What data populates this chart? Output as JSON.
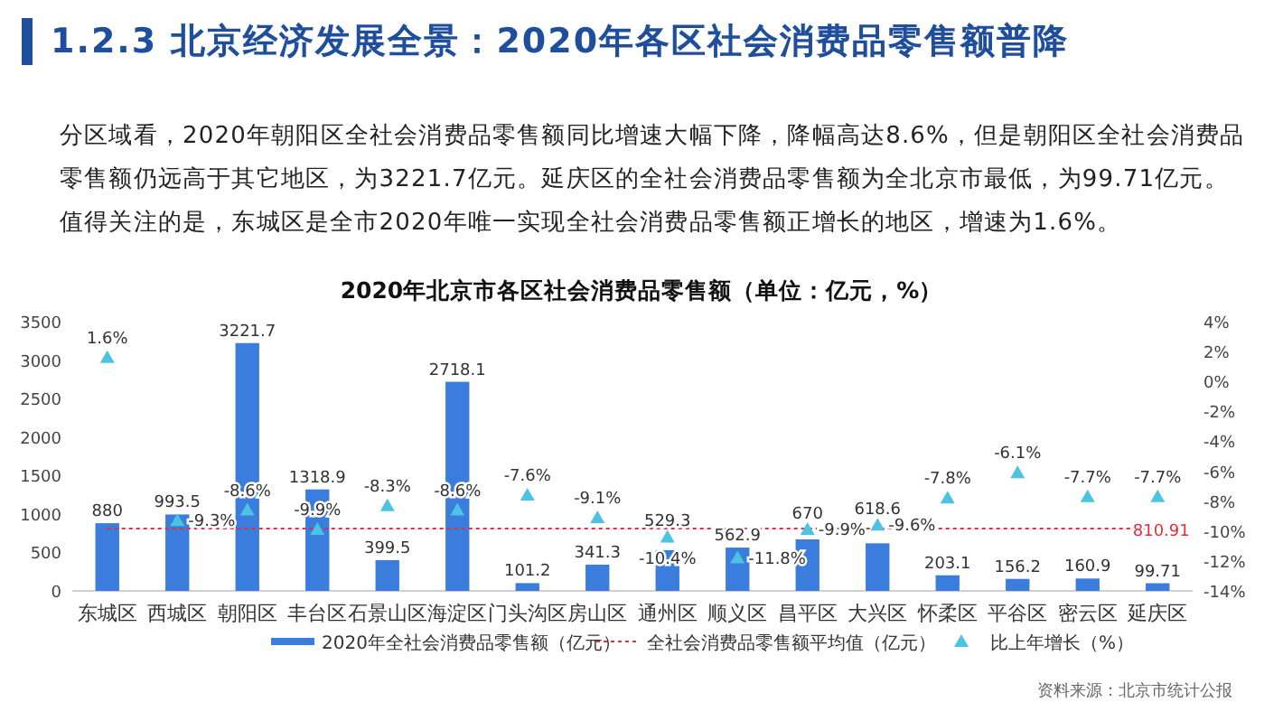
{
  "chart_data": {
    "type": "bar",
    "title": "1.2.3 北京经济发展全景：2020年各区社会消费品零售额普降",
    "subtitle": "分区域看，2020年朝阳区全社会消费品零售额同比增速大幅下降，降幅高达8.6%，但是朝阳区全社会消费品零售额仍远高于其它地区，为3221.7亿元。延庆区的全社会消费品零售额为全北京市最低，为99.71亿元。值得关注的是，东城区是全市2020年唯一实现全社会消费品零售额正增长的地区，增速为1.6%。",
    "annotations": [
      "2020年北京市各区社会消费品零售额（单位：亿元，%）",
      "资料来源：北京市统计公报"
    ],
    "categories": [
      "东城区",
      "西城区",
      "朝阳区",
      "丰台区",
      "石景山区",
      "海淀区",
      "门头沟区",
      "房山区",
      "通州区",
      "顺义区",
      "昌平区",
      "大兴区",
      "怀柔区",
      "平谷区",
      "密云区",
      "延庆区"
    ],
    "series": [
      {
        "name": "2020年全社会消费品零售额（亿元）",
        "color": "#3b7ddd",
        "values": [
          880,
          993.5,
          3221.7,
          1318.9,
          399.5,
          2718.1,
          101.2,
          341.3,
          529.3,
          562.9,
          670,
          618.6,
          203.1,
          156.2,
          160.9,
          99.71
        ],
        "value_labels": [
          "880",
          "993.5",
          "3221.7",
          "1318.9",
          "399.5",
          "2718.1",
          "101.2",
          "341.3",
          "529.3",
          "562.9",
          "670",
          "618.6",
          "203.1",
          "156.2",
          "160.9",
          "99.71"
        ]
      },
      {
        "name": "全社会消费品零售额平均值（亿元）",
        "type": "line",
        "color": "#e0303a",
        "line_style": "dotted",
        "marker": "none",
        "values": [
          810.91,
          810.91,
          810.91,
          810.91,
          810.91,
          810.91,
          810.91,
          810.91,
          810.91,
          810.91,
          810.91,
          810.91,
          810.91,
          810.91,
          810.91,
          810.91
        ],
        "value_labels": [
          null,
          null,
          null,
          null,
          null,
          null,
          null,
          null,
          null,
          null,
          null,
          null,
          null,
          null,
          null,
          "810.91"
        ]
      },
      {
        "name": "比上年增长（%）",
        "type": "scatter",
        "axis": "y2",
        "marker": "triangle",
        "color": "#4cc3e3",
        "values": [
          1.6,
          -9.3,
          -8.6,
          -9.9,
          -8.3,
          -8.6,
          -7.6,
          -9.1,
          -10.4,
          -11.8,
          -9.9,
          -9.6,
          -7.8,
          -6.1,
          -7.7,
          -7.7
        ],
        "value_labels": [
          "1.6%",
          "-9.3%",
          "-8.6%",
          "-9.9%",
          "-8.3%",
          "-8.6%",
          "-7.6%",
          "-9.1%",
          "-10.4%",
          "-11.8%",
          "-9.9%",
          "-9.6%",
          "-7.8%",
          "-6.1%",
          "-7.7%",
          "-7.7%"
        ]
      }
    ],
    "ylim": [
      0,
      3500
    ],
    "yticks": [
      0,
      500,
      1000,
      1500,
      2000,
      2500,
      3000,
      3500
    ],
    "y2lim": [
      -14,
      4
    ],
    "y2ticks": [
      {
        "value": -14,
        "label": "-14%"
      },
      {
        "value": -12,
        "label": "-12%"
      },
      {
        "value": -10,
        "label": "-10%"
      },
      {
        "value": -8,
        "label": "-8%"
      },
      {
        "value": -6,
        "label": "-6%"
      },
      {
        "value": -4,
        "label": "-4%"
      },
      {
        "value": -2,
        "label": "-2%"
      },
      {
        "value": 0,
        "label": "0%"
      },
      {
        "value": 2,
        "label": "2%"
      },
      {
        "value": 4,
        "label": "4%"
      }
    ],
    "legend": "bottom",
    "grid": false
  }
}
